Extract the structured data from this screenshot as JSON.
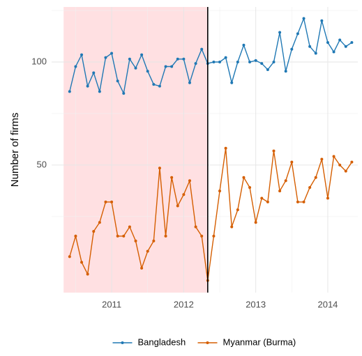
{
  "chart_data": {
    "type": "line",
    "y_label": "Number of firms",
    "x": [
      "2010-06",
      "2010-07",
      "2010-08",
      "2010-09",
      "2010-10",
      "2010-11",
      "2010-12",
      "2011-01",
      "2011-02",
      "2011-03",
      "2011-04",
      "2011-05",
      "2011-06",
      "2011-07",
      "2011-08",
      "2011-09",
      "2011-10",
      "2011-11",
      "2011-12",
      "2012-01",
      "2012-02",
      "2012-03",
      "2012-04",
      "2012-05",
      "2012-06",
      "2012-07",
      "2012-08",
      "2012-09",
      "2012-10",
      "2012-11",
      "2012-12",
      "2013-01",
      "2013-02",
      "2013-03",
      "2013-04",
      "2013-05",
      "2013-06",
      "2013-07",
      "2013-08",
      "2013-09",
      "2013-10",
      "2013-11",
      "2013-12",
      "2014-01",
      "2014-02",
      "2014-03",
      "2014-04",
      "2014-05"
    ],
    "series": [
      {
        "name": "Bangladesh",
        "color": "#1f78b4",
        "values": [
          82,
          97,
          105,
          85,
          93,
          82,
          103,
          106,
          88,
          81,
          102,
          96,
          105,
          94,
          86,
          85,
          97,
          97,
          102,
          102,
          87,
          99,
          109,
          99,
          100,
          100,
          103,
          87,
          100,
          112,
          100,
          101,
          99,
          95,
          100,
          122,
          94,
          109,
          121,
          134,
          111,
          106,
          132,
          114,
          107,
          116,
          111,
          114
        ]
      },
      {
        "name": "Myanmar (Burma)",
        "color": "#d55e00",
        "values": [
          27,
          31,
          26,
          24,
          32,
          34,
          39,
          39,
          31,
          31,
          33,
          30,
          25,
          28,
          30,
          49,
          31,
          46,
          38,
          41,
          45,
          33,
          31,
          23,
          31,
          42,
          56,
          33,
          37,
          46,
          43,
          34,
          40,
          39,
          55,
          42,
          45,
          51,
          39,
          39,
          43,
          46,
          52,
          40,
          53,
          50,
          48,
          51
        ]
      }
    ],
    "log_y": true,
    "ylim": [
      21.2,
      144.8
    ],
    "yticks": [
      50,
      100
    ],
    "xlim": [
      "2010-03",
      "2014-06"
    ],
    "xticks": [
      {
        "value": "2011-01",
        "label": "2011"
      },
      {
        "value": "2012-01",
        "label": "2012"
      },
      {
        "value": "2013-01",
        "label": "2013"
      },
      {
        "value": "2014-01",
        "label": "2014"
      }
    ],
    "shaded_span": [
      "2010-05",
      "2012-05"
    ],
    "shade_color": "#ffe0e2",
    "vline": "2012-05",
    "grid": true,
    "legend": "bottom"
  }
}
